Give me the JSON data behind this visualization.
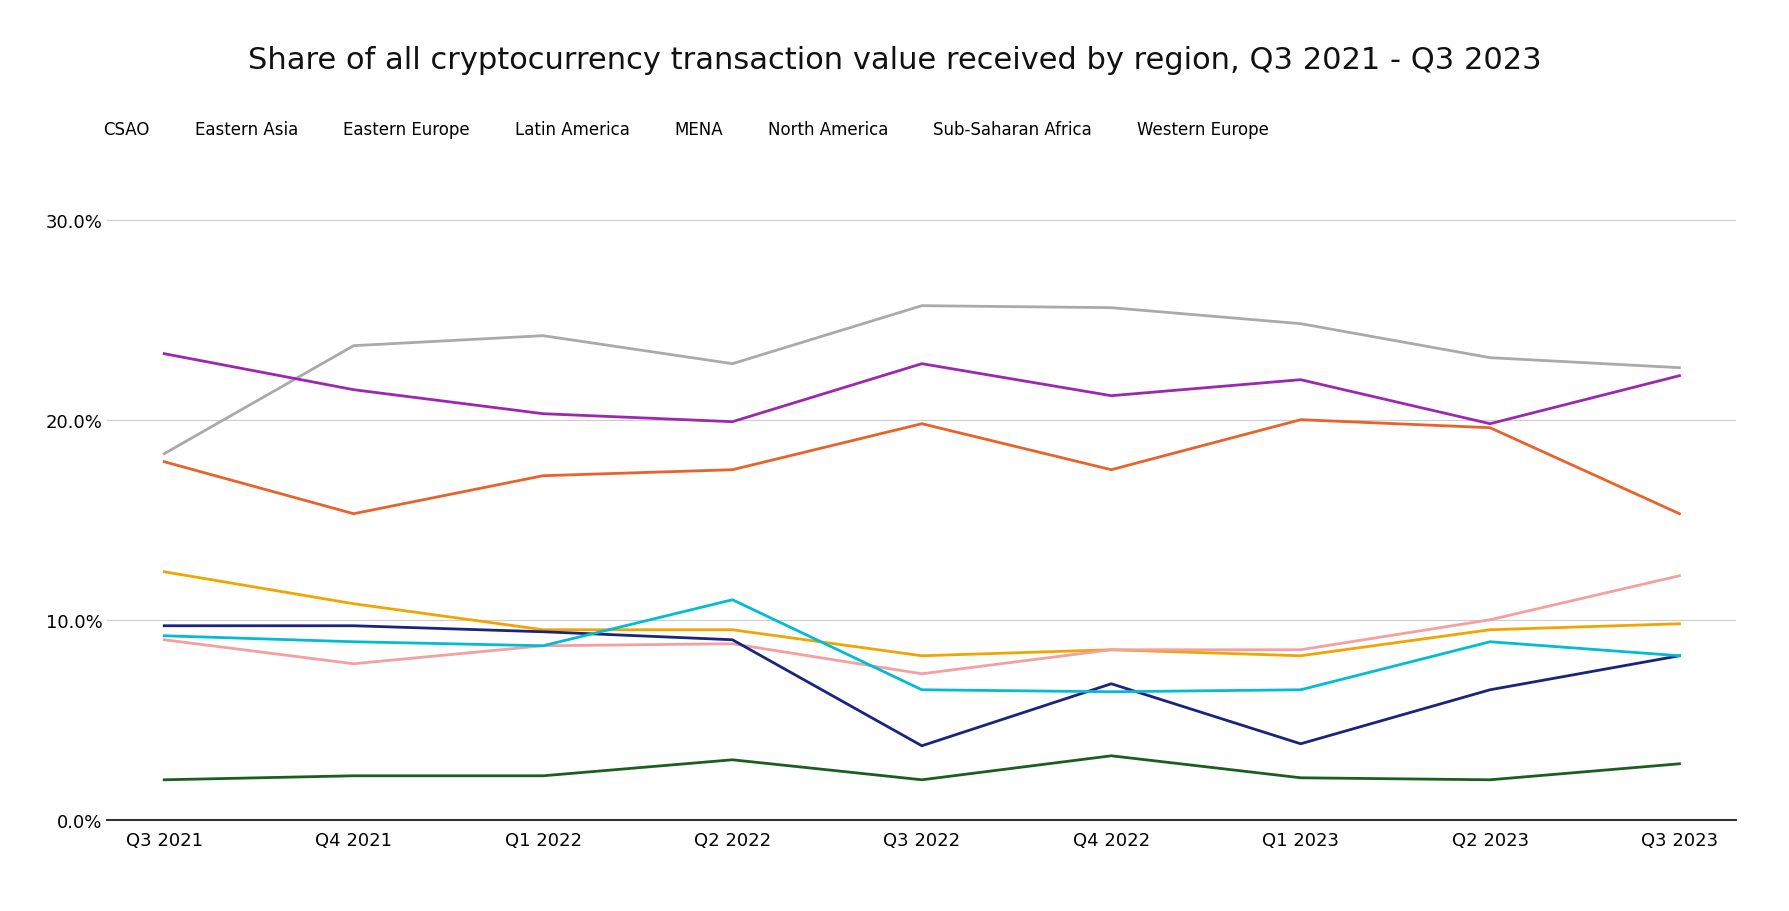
{
  "title": "Share of all cryptocurrency transaction value received by region, Q3 2021 - Q3 2023",
  "x_labels": [
    "Q3 2021",
    "Q4 2021",
    "Q1 2022",
    "Q2 2022",
    "Q3 2022",
    "Q4 2022",
    "Q1 2023",
    "Q2 2023",
    "Q3 2023"
  ],
  "series": [
    {
      "name": "CSAO",
      "color": "#e8622a",
      "values": [
        0.179,
        0.153,
        0.172,
        0.175,
        0.198,
        0.175,
        0.2,
        0.196,
        0.153
      ]
    },
    {
      "name": "Eastern Asia",
      "color": "#f0a500",
      "values": [
        0.124,
        0.108,
        0.095,
        0.095,
        0.082,
        0.085,
        0.082,
        0.095,
        0.098
      ]
    },
    {
      "name": "Eastern Europe",
      "color": "#f4a0a0",
      "values": [
        0.09,
        0.078,
        0.087,
        0.088,
        0.073,
        0.085,
        0.085,
        0.1,
        0.122
      ]
    },
    {
      "name": "Latin America",
      "color": "#1a237e",
      "values": [
        0.097,
        0.097,
        0.094,
        0.09,
        0.037,
        0.068,
        0.038,
        0.065,
        0.082
      ]
    },
    {
      "name": "MENA",
      "color": "#00bcd4",
      "values": [
        0.092,
        0.089,
        0.087,
        0.11,
        0.065,
        0.064,
        0.065,
        0.089,
        0.082
      ]
    },
    {
      "name": "North America",
      "color": "#aaaaaa",
      "values": [
        0.183,
        0.237,
        0.242,
        0.228,
        0.257,
        0.256,
        0.248,
        0.231,
        0.226
      ]
    },
    {
      "name": "Sub-Saharan Africa",
      "color": "#1b5e20",
      "values": [
        0.02,
        0.022,
        0.022,
        0.03,
        0.02,
        0.032,
        0.021,
        0.02,
        0.028
      ]
    },
    {
      "name": "Western Europe",
      "color": "#9c27b0",
      "values": [
        0.233,
        0.215,
        0.203,
        0.199,
        0.228,
        0.212,
        0.22,
        0.198,
        0.222
      ]
    }
  ],
  "ylim": [
    0.0,
    0.31
  ],
  "yticks": [
    0.0,
    0.1,
    0.2,
    0.3
  ],
  "background_color": "#ffffff",
  "grid_color": "#cccccc",
  "title_fontsize": 22,
  "legend_fontsize": 12,
  "tick_fontsize": 13
}
